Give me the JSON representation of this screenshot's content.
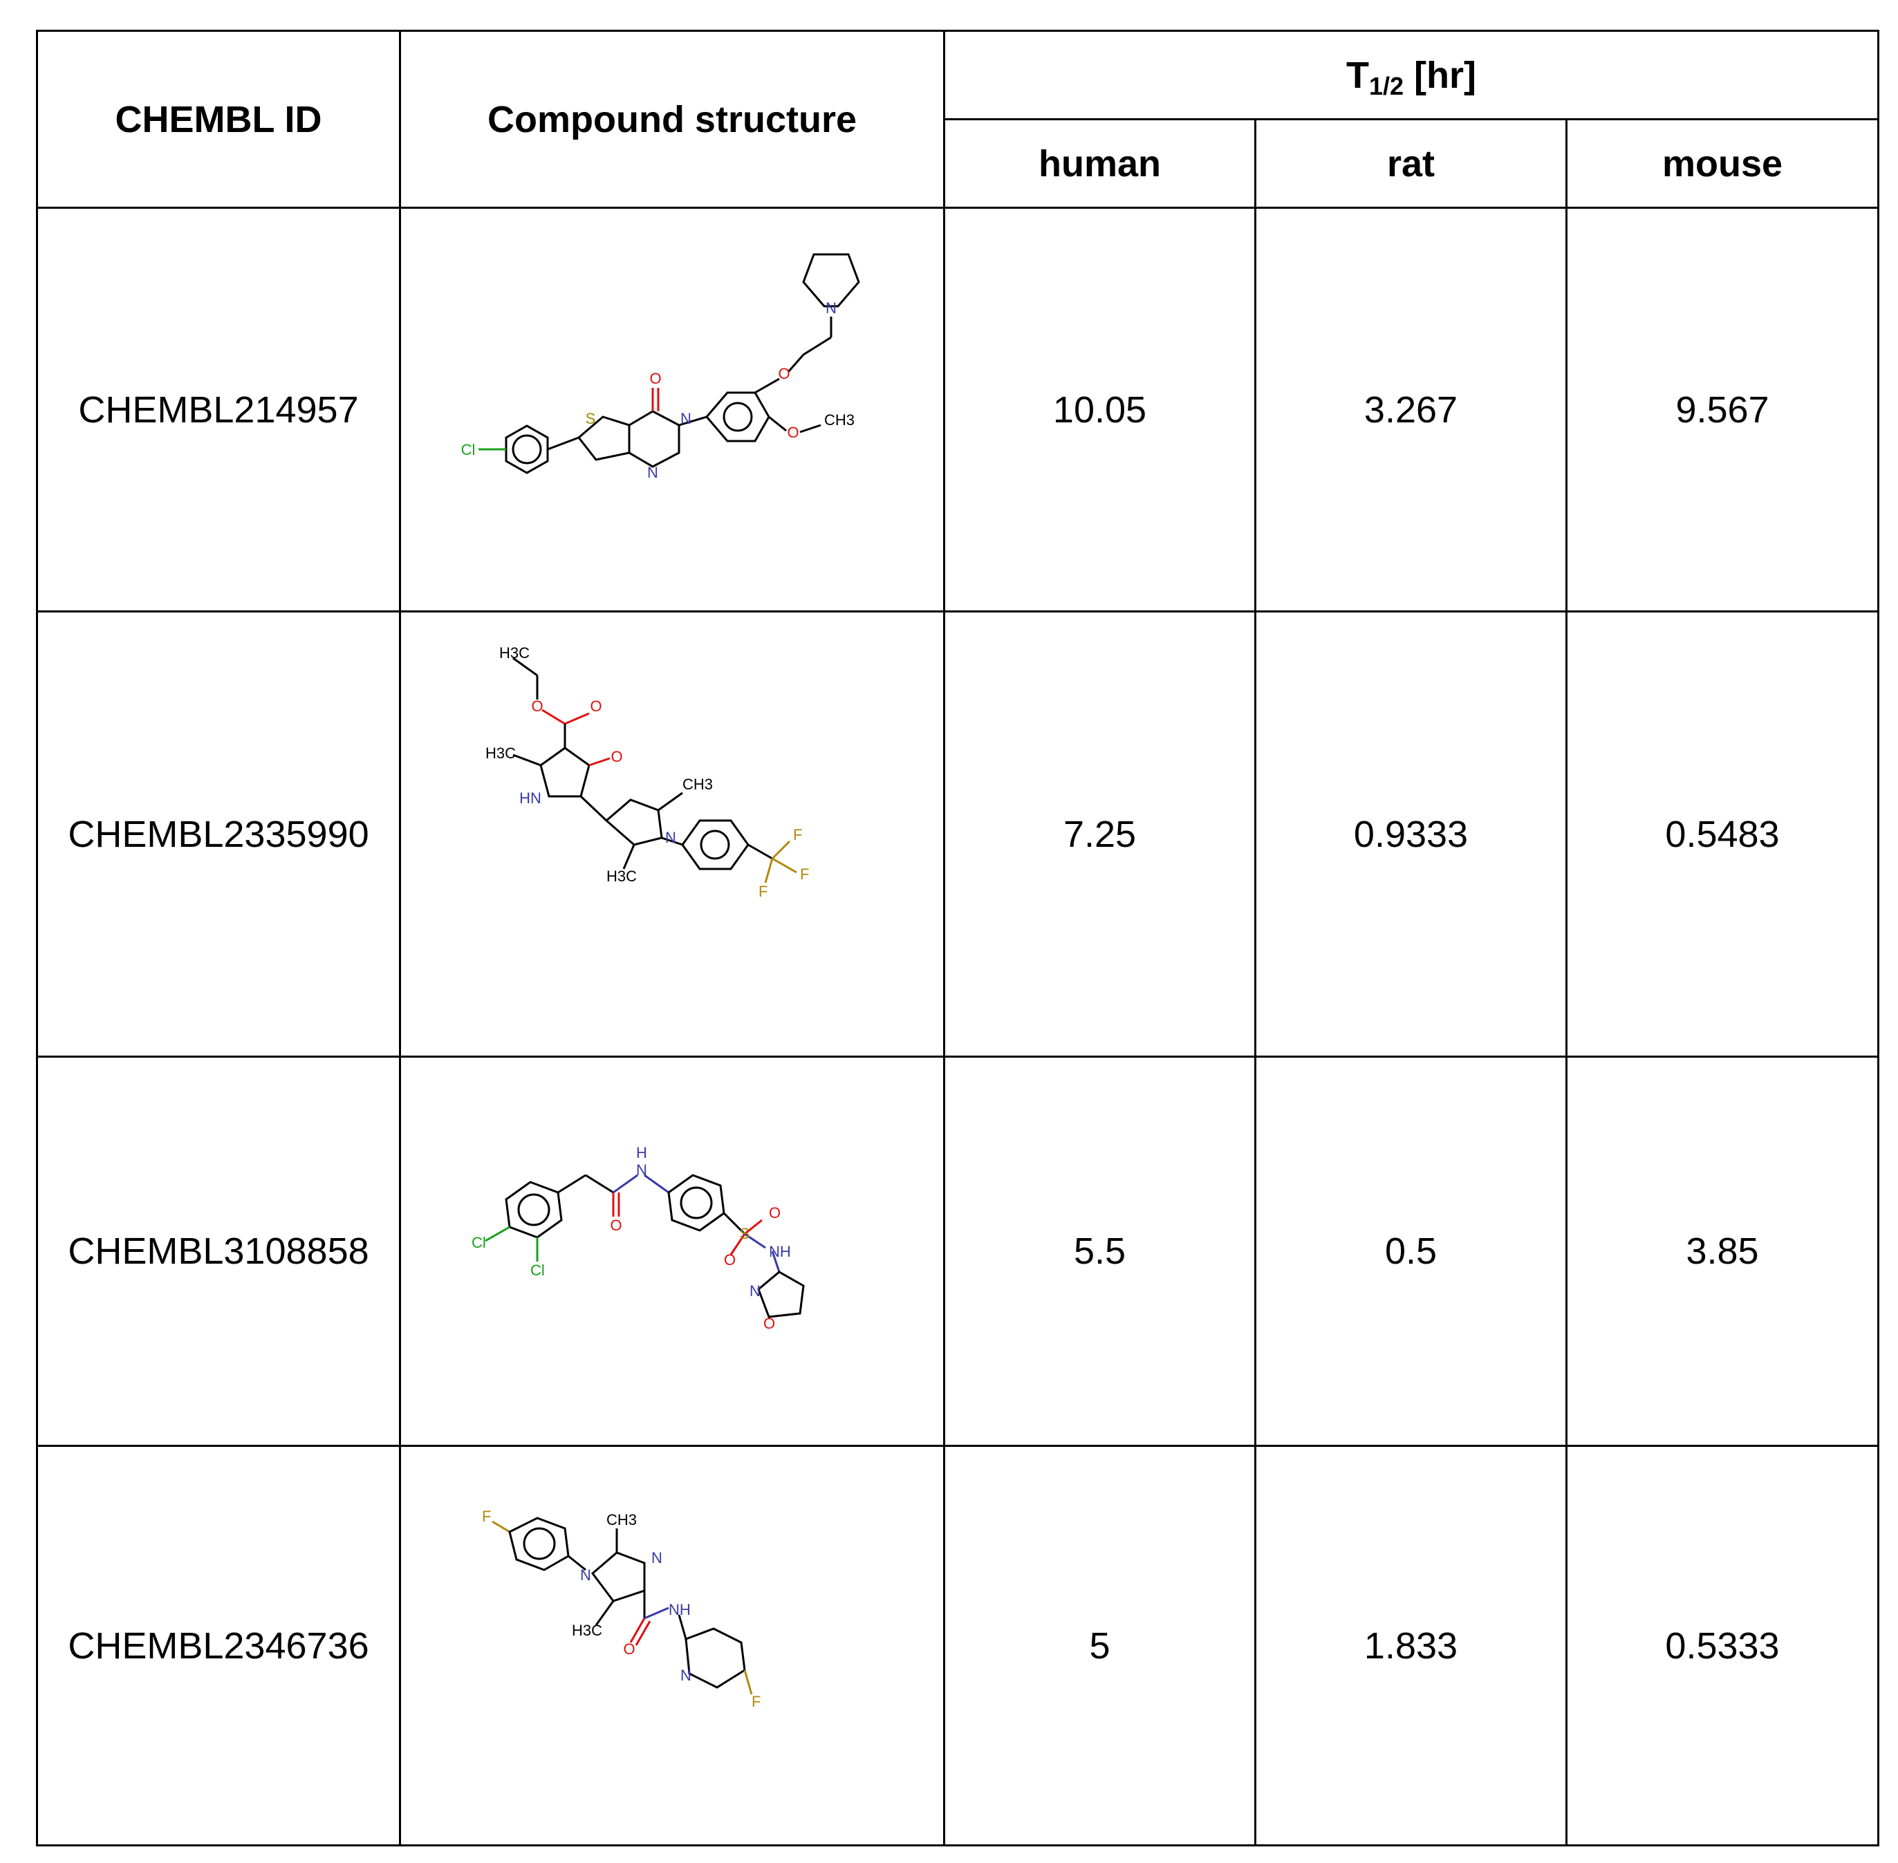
{
  "table": {
    "headers": {
      "id": "CHEMBL ID",
      "structure": "Compound structure",
      "half_life_main": "T",
      "half_life_sub": "1/2",
      "half_life_unit": "[hr]",
      "species": [
        "human",
        "rat",
        "mouse"
      ]
    },
    "rows": [
      {
        "id": "CHEMBL214957",
        "human": "10.05",
        "rat": "3.267",
        "mouse": "9.567",
        "atoms": {
          "cl": "Cl",
          "s": "S",
          "o1": "O",
          "n1": "N",
          "n2": "N",
          "o2": "O",
          "n3": "N",
          "o3": "O",
          "ch3": "CH3"
        }
      },
      {
        "id": "CHEMBL2335990",
        "human": "7.25",
        "rat": "0.9333",
        "mouse": "0.5483",
        "atoms": {
          "h3c1": "H3C",
          "o1": "O",
          "o2": "O",
          "h3c2": "H3C",
          "o3": "O",
          "hn": "HN",
          "ch3": "CH3",
          "n": "N",
          "h3c3": "H3C",
          "f1": "F",
          "f2": "F",
          "f3": "F"
        }
      },
      {
        "id": "CHEMBL3108858",
        "human": "5.5",
        "rat": "0.5",
        "mouse": "3.85",
        "atoms": {
          "h": "H",
          "n1": "N",
          "o1": "O",
          "cl1": "Cl",
          "cl2": "Cl",
          "o2": "O",
          "s": "S",
          "o3": "O",
          "nh": "NH",
          "n2": "N",
          "o4": "O"
        }
      },
      {
        "id": "CHEMBL2346736",
        "human": "5",
        "rat": "1.833",
        "mouse": "0.5333",
        "atoms": {
          "f1": "F",
          "ch3": "CH3",
          "n1": "N",
          "n2": "N",
          "h3c": "H3C",
          "nh": "NH",
          "o": "O",
          "n3": "N",
          "f2": "F"
        }
      }
    ]
  },
  "colors": {
    "nitrogen": "#3a3aa8",
    "oxygen": "#e01010",
    "sulfur": "#a08a00",
    "chlorine": "#1aa01a",
    "fluorine": "#b08a10",
    "bond": "#000000"
  }
}
